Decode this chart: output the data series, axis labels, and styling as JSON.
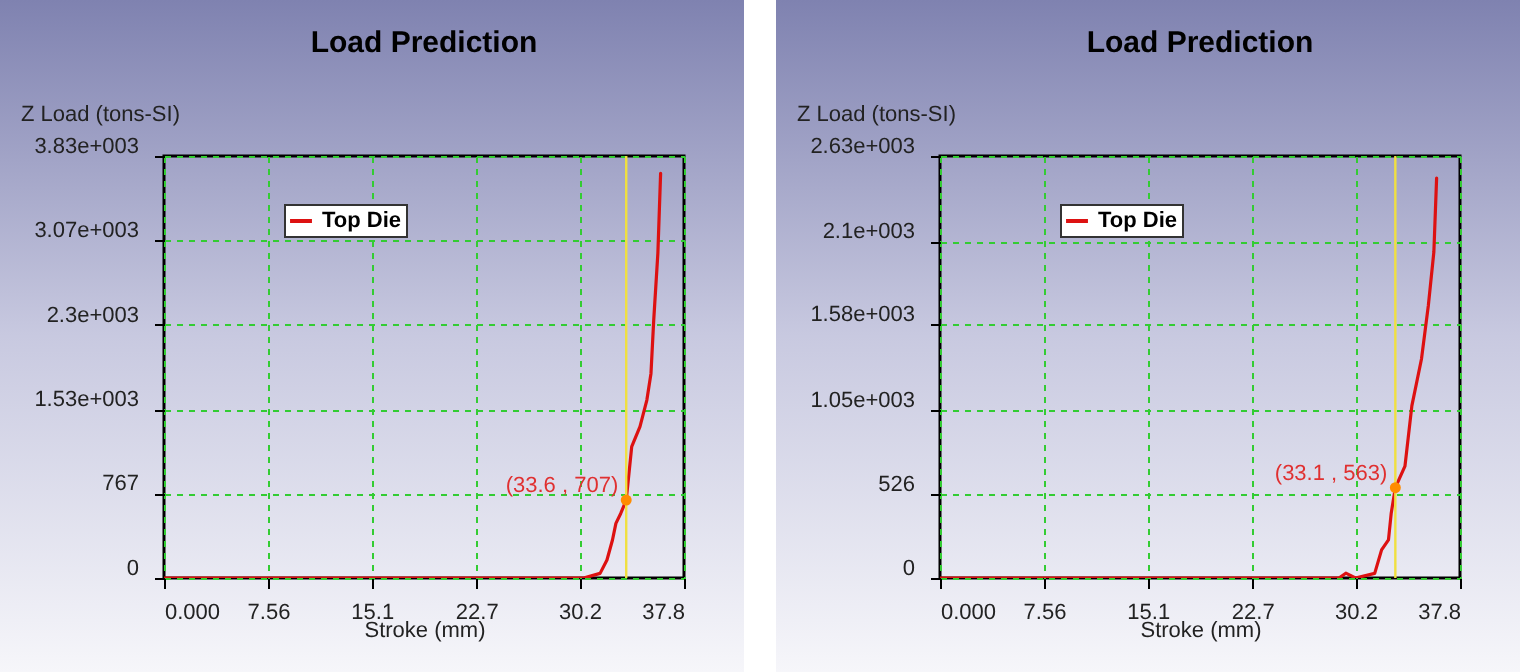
{
  "chart_data": [
    {
      "type": "line",
      "title": "Load Prediction",
      "xlabel": "Stroke (mm)",
      "ylabel": "Z Load (tons-SI)",
      "series": [
        {
          "name": "Top Die",
          "color": "#dd1111",
          "x": [
            0,
            28.8,
            30.5,
            31.7,
            32.2,
            32.6,
            32.85,
            33.2,
            33.6,
            33.8,
            34.0,
            34.6,
            35.1,
            35.4,
            35.6,
            35.9,
            36.1
          ],
          "values": [
            0,
            0,
            0,
            42,
            163,
            345,
            496,
            586,
            707,
            950,
            1193,
            1374,
            1615,
            1857,
            2342,
            2946,
            3672
          ]
        }
      ],
      "xlim": [
        0,
        37.8
      ],
      "xticks": [
        {
          "value": 0,
          "label": "0.000"
        },
        7.56,
        15.1,
        22.7,
        30.2,
        37.8
      ],
      "ylim": [
        0,
        3830
      ],
      "yticks": [
        0,
        767,
        {
          "value": 1530,
          "label": "1.53e+003"
        },
        {
          "value": 2300,
          "label": "2.3e+003"
        },
        {
          "value": 3070,
          "label": "3.07e+003"
        },
        {
          "value": 3830,
          "label": "3.83e+003"
        }
      ],
      "ref_lines": [
        {
          "axis": "x",
          "value": 33.6,
          "color": "#f0e040"
        }
      ],
      "annotations": [
        {
          "text": "(33.6 , 707)",
          "x": 33.6,
          "y": 707
        }
      ],
      "grid": true,
      "legend": "top",
      "marker": "none",
      "line_style": "solid"
    },
    {
      "type": "line",
      "title": "Load Prediction",
      "xlabel": "Stroke (mm)",
      "ylabel": "Z Load (tons-SI)",
      "series": [
        {
          "name": "Top Die",
          "color": "#dd1111",
          "x": [
            0,
            29.0,
            29.5,
            30.2,
            31.6,
            32.1,
            32.6,
            32.8,
            33.1,
            33.8,
            34.3,
            35.0,
            35.5,
            35.9,
            36.1
          ],
          "values": [
            0,
            0,
            30,
            0,
            29,
            175,
            238,
            404,
            563,
            697,
            1073,
            1365,
            1699,
            2032,
            2492
          ]
        }
      ],
      "xlim": [
        0,
        37.8
      ],
      "xticks": [
        {
          "value": 0,
          "label": "0.000"
        },
        7.56,
        15.1,
        22.7,
        30.2,
        37.8
      ],
      "ylim": [
        0,
        2630
      ],
      "yticks": [
        0,
        526,
        {
          "value": 1050,
          "label": "1.05e+003"
        },
        {
          "value": 1580,
          "label": "1.58e+003"
        },
        {
          "value": 2100,
          "label": "2.1e+003"
        },
        {
          "value": 2630,
          "label": "2.63e+003"
        }
      ],
      "ref_lines": [
        {
          "axis": "x",
          "value": 33.1,
          "color": "#f0e040"
        }
      ],
      "annotations": [
        {
          "text": "(33.1 , 563)",
          "x": 33.1,
          "y": 563
        }
      ],
      "grid": true,
      "legend": "top",
      "marker": "none",
      "line_style": "solid"
    }
  ]
}
